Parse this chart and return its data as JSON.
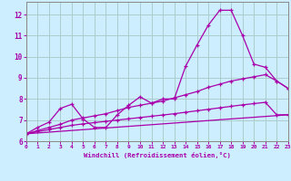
{
  "bg_color": "#cceeff",
  "grid_color": "#aacccc",
  "line_color": "#aa00aa",
  "xlabel": "Windchill (Refroidissement éolien,°C)",
  "xlim": [
    0,
    23
  ],
  "ylim": [
    6.0,
    12.6
  ],
  "yticks": [
    6,
    7,
    8,
    9,
    10,
    11,
    12
  ],
  "xticks": [
    0,
    1,
    2,
    3,
    4,
    5,
    6,
    7,
    8,
    9,
    10,
    11,
    12,
    13,
    14,
    15,
    16,
    17,
    18,
    19,
    20,
    21,
    22,
    23
  ],
  "line1_x": [
    0,
    1,
    2,
    3,
    4,
    5,
    6,
    7,
    8,
    9,
    10,
    11,
    12,
    13,
    14,
    15,
    16,
    17,
    18,
    19,
    20,
    21,
    22,
    23
  ],
  "line1_y": [
    6.35,
    6.65,
    6.9,
    7.55,
    7.75,
    7.05,
    6.65,
    6.65,
    7.25,
    7.7,
    8.1,
    7.8,
    8.0,
    8.0,
    9.55,
    10.55,
    11.5,
    12.2,
    12.2,
    11.0,
    9.65,
    9.5,
    8.85,
    8.5
  ],
  "line2_x": [
    0,
    1,
    2,
    3,
    4,
    5,
    6,
    7,
    8,
    9,
    10,
    11,
    12,
    13,
    14,
    15,
    16,
    17,
    18,
    19,
    20,
    21,
    22,
    23
  ],
  "line2_y": [
    6.35,
    6.5,
    6.65,
    6.8,
    7.0,
    7.1,
    7.2,
    7.3,
    7.45,
    7.6,
    7.7,
    7.8,
    7.9,
    8.05,
    8.2,
    8.35,
    8.55,
    8.7,
    8.85,
    8.95,
    9.05,
    9.15,
    8.85,
    8.5
  ],
  "line3_x": [
    0,
    1,
    2,
    3,
    4,
    5,
    6,
    7,
    8,
    9,
    10,
    11,
    12,
    13,
    14,
    15,
    16,
    17,
    18,
    19,
    20,
    21,
    22,
    23
  ],
  "line3_y": [
    6.35,
    6.45,
    6.55,
    6.65,
    6.75,
    6.82,
    6.88,
    6.94,
    7.0,
    7.06,
    7.12,
    7.18,
    7.24,
    7.3,
    7.37,
    7.44,
    7.51,
    7.58,
    7.65,
    7.72,
    7.78,
    7.84,
    7.25,
    7.25
  ],
  "line4_x": [
    0,
    23
  ],
  "line4_y": [
    6.35,
    7.25
  ]
}
